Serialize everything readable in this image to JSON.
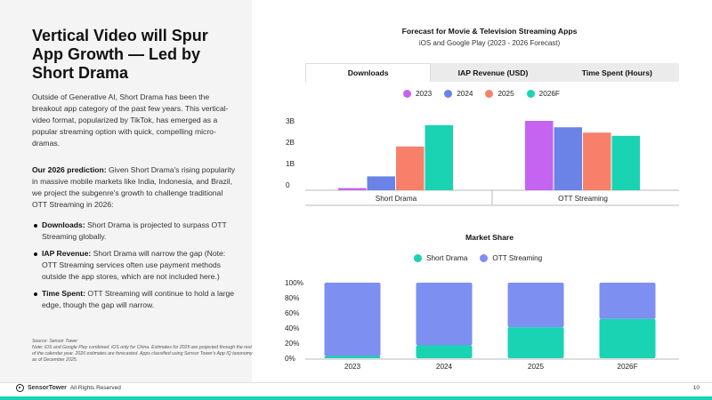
{
  "slide": {
    "title": "Vertical Video will Spur App Growth — Led by Short Drama",
    "paragraph1": "Outside of Generative AI, Short Drama has been the breakout app category of the past few years. This vertical-video format, popularized by TikTok, has emerged as a popular streaming option with quick, compelling micro-dramas.",
    "prediction_label": "Our 2026 prediction:",
    "prediction_text": " Given Short Drama's rising popularity in massive mobile markets like India, Indonesia, and Brazil, we project the subgenre's growth to challenge traditional OTT Streaming in 2026:",
    "bullets": [
      {
        "label": "Downloads:",
        "text": " Short Drama is projected to surpass OTT Streaming globally."
      },
      {
        "label": "IAP Revenue:",
        "text": " Short Drama will narrow the gap (Note: OTT Streaming services often use payment methods outside the app stores, which are not included here.)"
      },
      {
        "label": "Time Spent:",
        "text": " OTT Streaming will continue to hold a large edge, though the gap will narrow."
      }
    ],
    "source": "Source: Sensor Tower\nNote: iOS and Google Play combined. iOS only for China. Estimates for 2025 are projected through the rest of the calendar year. 2026 estimates are forecasted. Apps classified using Sensor Tower's App IQ taxonomy as of December 2025.",
    "footer_logo": "SensorTower",
    "footer_rights": "All Rights Reserved",
    "page_number": "10"
  },
  "tabs": [
    "Downloads",
    "IAP Revenue (USD)",
    "Time Spent (Hours)"
  ],
  "active_tab": 0,
  "colors": {
    "2023": "#c464f0",
    "2024": "#6b82e6",
    "2025": "#f8806a",
    "2026F": "#19d3b3",
    "short_drama": "#19d3b3",
    "ott": "#7d8ff0",
    "accent": "#19d3b3"
  },
  "chart_data": [
    {
      "type": "bar",
      "title": "Forecast for Movie & Television Streaming Apps",
      "subtitle": "iOS and Google Play (2023 - 2026 Forecast)",
      "categories": [
        "Short Drama",
        "OTT Streaming"
      ],
      "series": [
        {
          "name": "2023",
          "values": [
            0.1,
            3.25
          ]
        },
        {
          "name": "2024",
          "values": [
            0.65,
            2.95
          ]
        },
        {
          "name": "2025",
          "values": [
            2.05,
            2.7
          ]
        },
        {
          "name": "2026F",
          "values": [
            3.05,
            2.55
          ]
        }
      ],
      "yticks": [
        "0",
        "1B",
        "2B",
        "3B"
      ],
      "ylim": [
        0,
        3.5
      ],
      "grid": false,
      "legend": "top"
    },
    {
      "type": "bar",
      "title": "Market Share",
      "stacked": true,
      "categories": [
        "2023",
        "2024",
        "2025",
        "2026F"
      ],
      "series": [
        {
          "name": "Short Drama",
          "values": [
            3,
            17,
            41,
            52
          ]
        },
        {
          "name": "OTT Streaming",
          "values": [
            97,
            83,
            59,
            48
          ]
        }
      ],
      "yticks": [
        "0%",
        "20%",
        "40%",
        "60%",
        "80%",
        "100%"
      ],
      "ylim": [
        0,
        100
      ],
      "grid": false,
      "legend": "top"
    }
  ]
}
